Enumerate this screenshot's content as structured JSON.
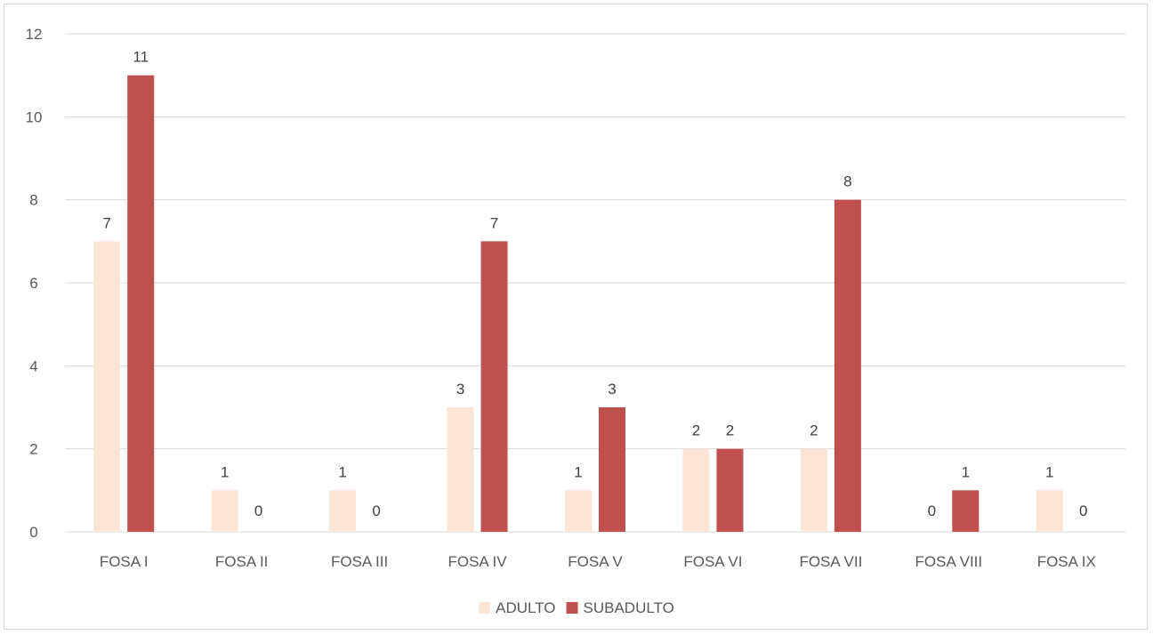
{
  "chart_data": {
    "type": "bar",
    "categories": [
      "FOSA I",
      "FOSA II",
      "FOSA III",
      "FOSA IV",
      "FOSA V",
      "FOSA VI",
      "FOSA VII",
      "FOSA VIII",
      "FOSA IX"
    ],
    "series": [
      {
        "name": "ADULTO",
        "color": "#fbe5d6",
        "values": [
          7,
          1,
          1,
          3,
          1,
          2,
          2,
          0,
          1
        ]
      },
      {
        "name": "SUBADULTO",
        "color": "#c0504d",
        "values": [
          11,
          0,
          0,
          7,
          3,
          2,
          8,
          1,
          0
        ]
      }
    ],
    "title": "",
    "xlabel": "",
    "ylabel": "",
    "ylim": [
      0,
      12
    ],
    "yticks": [
      0,
      2,
      4,
      6,
      8,
      10,
      12
    ],
    "grid": true,
    "gridColor": "#d9d9d9",
    "legend_position": "bottom",
    "data_labels": true
  }
}
